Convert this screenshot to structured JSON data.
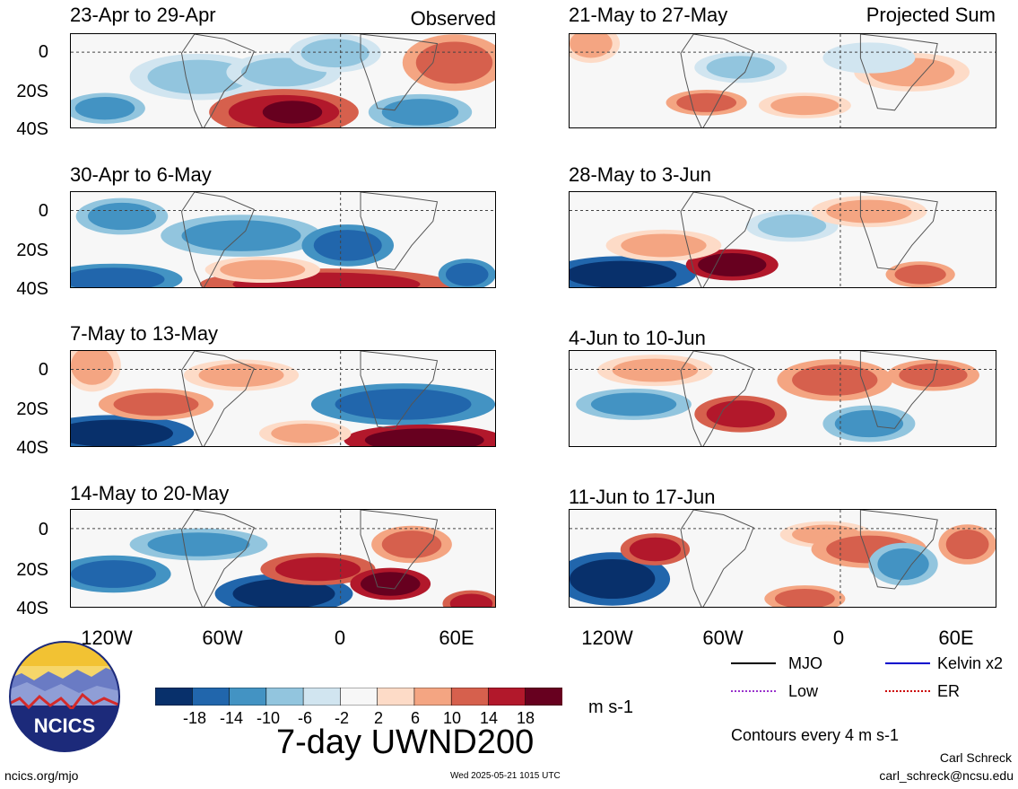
{
  "column_titles": {
    "left": "Observed",
    "right": "Projected Sum"
  },
  "panels_left": [
    {
      "label": "23-Apr to 29-Apr"
    },
    {
      "label": "30-Apr to 6-May"
    },
    {
      "label": "7-May to 13-May"
    },
    {
      "label": "14-May to 20-May"
    }
  ],
  "panels_right": [
    {
      "label": "21-May to 27-May"
    },
    {
      "label": "28-May to 3-Jun"
    },
    {
      "label": "4-Jun to 10-Jun"
    },
    {
      "label": "11-Jun to 17-Jun"
    }
  ],
  "lat_ticks": [
    "0",
    "20S",
    "40S"
  ],
  "lon_ticks": [
    "120W",
    "60W",
    "0",
    "60E"
  ],
  "colorbar": {
    "colors": [
      "#08306b",
      "#2166ac",
      "#4393c3",
      "#92c5de",
      "#d1e5f0",
      "#f7f7f7",
      "#fddbc7",
      "#f4a582",
      "#d6604d",
      "#b2182b",
      "#67001f"
    ],
    "ticks": [
      "-18",
      "-14",
      "-10",
      "-6",
      "-2",
      "2",
      "6",
      "10",
      "14",
      "18"
    ],
    "units": "m s-1"
  },
  "legend": {
    "items": [
      {
        "label": "MJO",
        "color": "#000000",
        "style": "solid"
      },
      {
        "label": "Kelvin x2",
        "color": "#0000cc",
        "style": "solid"
      },
      {
        "label": "Low",
        "color": "#9933cc",
        "style": "dotted"
      },
      {
        "label": "ER",
        "color": "#cc0000",
        "style": "dotted"
      }
    ],
    "contour_note": "Contours every 4 m s-1"
  },
  "main_title": "7-day UWND200",
  "logo_text": "NCICS",
  "footer": {
    "url": "ncics.org/mjo",
    "timestamp": "Wed 2025-05-21 1015 UTC",
    "author": "Carl Schreck",
    "email": "carl_schreck@ncsu.edu"
  }
}
